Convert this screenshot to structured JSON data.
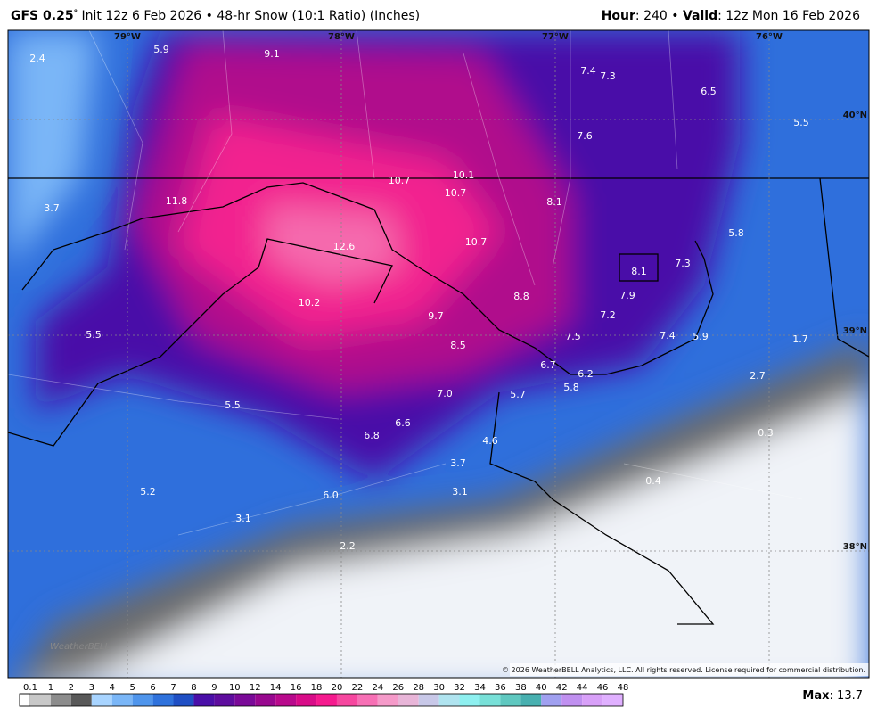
{
  "header": {
    "model": "GFS 0.25",
    "degree": "°",
    "title": " Init 12z 6 Feb 2026 • 48-hr Snow (10:1 Ratio) (Inches)",
    "hour_label": "Hour",
    "hour_value": ": 240 • ",
    "valid_label": "Valid",
    "valid_value": ": 12z Mon 16 Feb 2026"
  },
  "map": {
    "longitudes": [
      "79°W",
      "78°W",
      "77°W",
      "76°W"
    ],
    "latitudes": [
      "40°N",
      "39°N",
      "38°N"
    ],
    "labels": [
      "2.4",
      "5.9",
      "9.1",
      "7.4",
      "7.3",
      "6.5",
      "5.5",
      "7.6",
      "10.1",
      "10.7",
      "10.7",
      "8.1",
      "3.7",
      "11.8",
      "5.8",
      "12.6",
      "10.7",
      "7.3",
      "8.1",
      "8.8",
      "7.9",
      "10.2",
      "9.7",
      "7.2",
      "5.5",
      "7.5",
      "7.4",
      "5.9",
      "1.7",
      "8.5",
      "6.7",
      "6.2",
      "2.7",
      "5.8",
      "7.0",
      "5.7",
      "5.5",
      "6.6",
      "0.3",
      "6.8",
      "4.6",
      "3.7",
      "0.4",
      "3.1",
      "5.2",
      "6.0",
      "3.1",
      "2.2"
    ],
    "logo": "WeatherBELL",
    "copyright": "© 2026 WeatherBELL Analytics, LLC. All rights reserved. License required for commercial distribution."
  },
  "colorbar": {
    "ticks": [
      "0.1",
      "1",
      "2",
      "3",
      "4",
      "5",
      "6",
      "7",
      "8",
      "9",
      "10",
      "12",
      "14",
      "16",
      "18",
      "20",
      "22",
      "24",
      "26",
      "28",
      "30",
      "32",
      "34",
      "36",
      "38",
      "40",
      "42",
      "44",
      "46",
      "48"
    ],
    "colors": [
      "#ffffff",
      "#c8c8c8",
      "#8c8c8c",
      "#595959",
      "#a8d4ff",
      "#7ab6f7",
      "#4f95ec",
      "#2f72dc",
      "#1f4fc4",
      "#4a0fa8",
      "#5e0d9e",
      "#7a0a98",
      "#98088f",
      "#b80a8c",
      "#d80c88",
      "#f51a8e",
      "#f6479f",
      "#f770b5",
      "#f59ac9",
      "#e8b5d8",
      "#c8c8e8",
      "#b0e4f0",
      "#8ef0f0",
      "#78e0d8",
      "#5fc8c0",
      "#48b0b0",
      "#a0a0f0",
      "#c090f0",
      "#d8a0f8",
      "#e0b0ff"
    ]
  },
  "footer": {
    "max_label": "Max",
    "max_value": ": 13.7"
  }
}
